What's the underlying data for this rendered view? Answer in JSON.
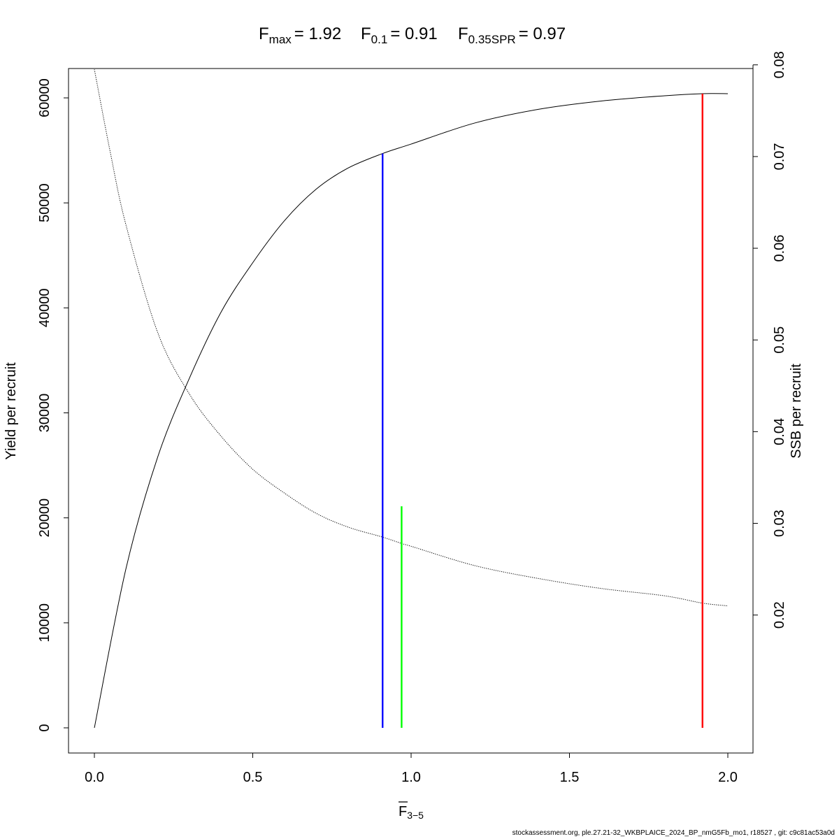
{
  "chart_data": {
    "type": "line",
    "title": {
      "fmax_sub": "max",
      "fmax_val": "= 1.92",
      "f01_sub": "0.1",
      "f01_val": "= 0.91",
      "fspr_sub": "0.35SPR",
      "fspr_val": "= 0.97"
    },
    "xlabel": {
      "main": "F",
      "sub": "3−5"
    },
    "ylabel_left": "Yield per recruit",
    "ylabel_right": "SSB per recruit",
    "xlim": [
      0,
      2
    ],
    "ylim_left": [
      0,
      60400
    ],
    "ylim_right": [
      0.0077,
      0.0796
    ],
    "x_ticks": [
      "0.0",
      "0.5",
      "1.0",
      "1.5",
      "2.0"
    ],
    "y_left_ticks": [
      "0",
      "10000",
      "20000",
      "30000",
      "40000",
      "50000",
      "60000"
    ],
    "y_right_ticks": [
      "0.02",
      "0.03",
      "0.04",
      "0.05",
      "0.06",
      "0.07",
      "0.08"
    ],
    "series": [
      {
        "axis": "left",
        "style": "solid",
        "color": "#000000",
        "x": [
          0,
          0.1,
          0.2,
          0.3,
          0.4,
          0.5,
          0.6,
          0.7,
          0.8,
          0.91,
          1.0,
          1.2,
          1.4,
          1.6,
          1.8,
          1.92,
          2.0
        ],
        "y": [
          0,
          15200,
          25800,
          33300,
          39600,
          44300,
          48300,
          51300,
          53300,
          54700,
          55600,
          57600,
          58900,
          59700,
          60200,
          60400,
          60400
        ]
      },
      {
        "axis": "right",
        "style": "dotted",
        "color": "#000000",
        "x": [
          0,
          0.05,
          0.1,
          0.2,
          0.3,
          0.4,
          0.5,
          0.6,
          0.7,
          0.8,
          0.91,
          0.97,
          1.0,
          1.2,
          1.4,
          1.6,
          1.8,
          1.92,
          2.0
        ],
        "y": [
          0.0795,
          0.0705,
          0.0625,
          0.0508,
          0.0441,
          0.0395,
          0.0359,
          0.0333,
          0.0311,
          0.0296,
          0.0285,
          0.0278,
          0.0275,
          0.0254,
          0.024,
          0.0229,
          0.0221,
          0.0213,
          0.021
        ]
      }
    ],
    "ref_lines": [
      {
        "name": "Fmax",
        "x": 1.92,
        "y_top": 60400,
        "color": "#ff0000"
      },
      {
        "name": "F0.1",
        "x": 0.91,
        "y_top": 54700,
        "color": "#0000ff"
      },
      {
        "name": "F0.35SPR",
        "x": 0.97,
        "y_top": 21100,
        "color": "#00ff00"
      }
    ],
    "grid": false,
    "legend": "none"
  },
  "footer": "stockassessment.org, ple.27.21-32_WKBPLAICE_2024_BP_nmG5Fb_mo1, r18527 , git: c9c81ac53a0d"
}
